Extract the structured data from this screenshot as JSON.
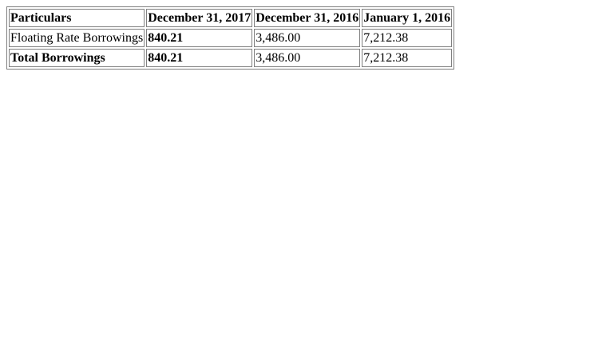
{
  "table": {
    "headers": [
      "Particulars",
      "December 31, 2017",
      "December 31, 2016",
      "January 1, 2016"
    ],
    "rows": [
      [
        "Floating Rate Borrowings",
        "840.21",
        "3,486.00",
        "7,212.38"
      ],
      [
        "Total Borrowings",
        "840.21",
        "3,486.00",
        "7,212.38"
      ]
    ]
  }
}
